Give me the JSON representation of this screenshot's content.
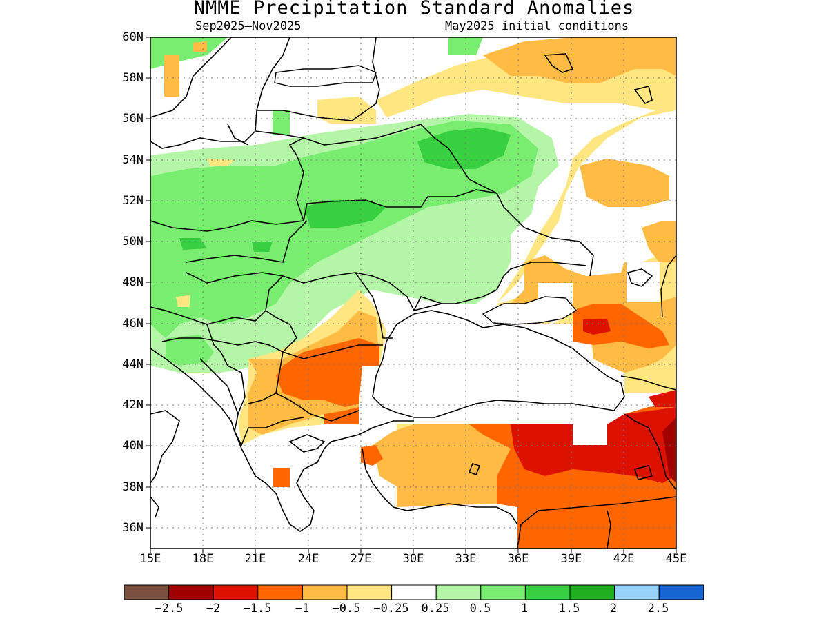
{
  "title": "NMME Precipitation Standard Anomalies",
  "subtitle_left": "Sep2025–Nov2025",
  "subtitle_right": "May2025 initial conditions",
  "lat_labels": [
    "60N",
    "58N",
    "56N",
    "54N",
    "52N",
    "50N",
    "48N",
    "46N",
    "44N",
    "42N",
    "40N",
    "38N",
    "36N"
  ],
  "lon_labels": [
    "15E",
    "18E",
    "21E",
    "24E",
    "27E",
    "30E",
    "33E",
    "36E",
    "39E",
    "42E",
    "45E"
  ],
  "colorbar": {
    "colors": [
      "#7a5040",
      "#a00000",
      "#dd1100",
      "#ff6600",
      "#ffbb44",
      "#ffe680",
      "#ffffff",
      "#b4f5a8",
      "#78ed70",
      "#38d040",
      "#1fb01f",
      "#96d2fa",
      "#1464d2"
    ],
    "labels": [
      "−2.5",
      "−2",
      "−1.5",
      "−1",
      "−0.5",
      "−0.25",
      "0.25",
      "0.5",
      "1",
      "1.5",
      "2",
      "2.5"
    ]
  },
  "chart_data": {
    "type": "heatmap",
    "title": "NMME Precipitation Standard Anomalies",
    "period": "Sep2025–Nov2025",
    "initial_conditions": "May2025 initial conditions",
    "lon_range": [
      15,
      45
    ],
    "lat_range": [
      35,
      60
    ],
    "grid": true,
    "colorbar_bounds": [
      -2.5,
      -2,
      -1.5,
      -1,
      -0.5,
      -0.25,
      0.25,
      0.5,
      1,
      1.5,
      2,
      2.5
    ]
  }
}
